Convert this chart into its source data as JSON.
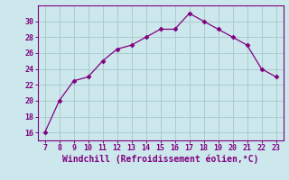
{
  "x": [
    7,
    8,
    9,
    10,
    11,
    12,
    13,
    14,
    15,
    16,
    17,
    18,
    19,
    20,
    21,
    22,
    23
  ],
  "y": [
    16,
    20,
    22.5,
    23,
    25,
    26.5,
    27,
    28,
    29,
    29,
    31,
    30,
    29,
    28,
    27,
    24,
    23
  ],
  "line_color": "#800080",
  "marker": "D",
  "marker_size": 2.5,
  "background_color": "#cce8ec",
  "grid_color": "#aacccc",
  "xlabel": "Windchill (Refroidissement éolien,°C)",
  "xlabel_color": "#800080",
  "ytick_values": [
    16,
    18,
    20,
    22,
    24,
    26,
    28,
    30
  ],
  "xtick_labels": [
    "7",
    "8",
    "9",
    "10",
    "11",
    "12",
    "13",
    "14",
    "15",
    "16",
    "17",
    "18",
    "19",
    "20",
    "21",
    "22",
    "23"
  ],
  "xlim": [
    6.5,
    23.5
  ],
  "ylim": [
    15.0,
    32.0
  ],
  "tick_color": "#800080",
  "spine_color": "#800080",
  "xlabel_fontsize": 7.0,
  "tick_fontsize": 6.0
}
